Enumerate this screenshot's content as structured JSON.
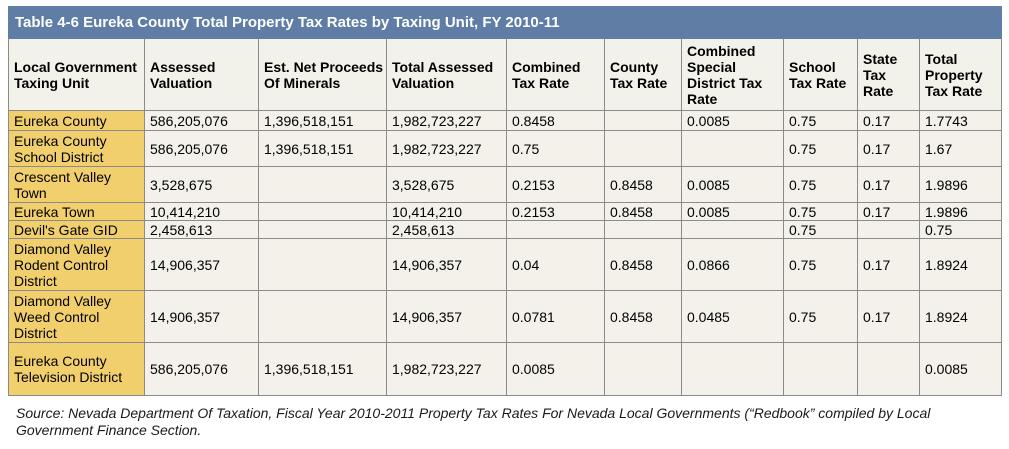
{
  "title": "Table 4-6 Eureka County Total Property Tax Rates by Taxing Unit, FY 2010-11",
  "columns": [
    "Local Government Taxing Unit",
    "Assessed Valuation",
    "Est. Net Proceeds Of Minerals",
    "Total Assessed Valuation",
    "Combined Tax Rate",
    "County Tax Rate",
    "Combined Special District Tax Rate",
    "School Tax Rate",
    "State Tax Rate",
    "Total Property Tax Rate"
  ],
  "rows": [
    [
      "Eureka County",
      "586,205,076",
      "1,396,518,151",
      "1,982,723,227",
      "0.8458",
      "",
      "0.0085",
      "0.75",
      "0.17",
      "1.7743"
    ],
    [
      "Eureka County School District",
      "586,205,076",
      "1,396,518,151",
      "1,982,723,227",
      "0.75",
      "",
      "",
      "0.75",
      "0.17",
      "1.67"
    ],
    [
      "Crescent Valley Town",
      "3,528,675",
      "",
      "3,528,675",
      "0.2153",
      "0.8458",
      "0.0085",
      "0.75",
      "0.17",
      "1.9896"
    ],
    [
      "Eureka Town",
      "10,414,210",
      "",
      "10,414,210",
      "0.2153",
      "0.8458",
      "0.0085",
      "0.75",
      "0.17",
      "1.9896"
    ],
    [
      "Devil's Gate GID",
      "2,458,613",
      "",
      "2,458,613",
      "",
      "",
      "",
      "0.75",
      "",
      "0.75"
    ],
    [
      "Diamond Valley Rodent Control District",
      "14,906,357",
      "",
      "14,906,357",
      "0.04",
      "0.8458",
      "0.0866",
      "0.75",
      "0.17",
      "1.8924"
    ],
    [
      "Diamond Valley Weed Control District",
      "14,906,357",
      "",
      "14,906,357",
      "0.0781",
      "0.8458",
      "0.0485",
      "0.75",
      "0.17",
      "1.8924"
    ],
    [
      "Eureka County Television District",
      "586,205,076",
      "1,396,518,151",
      "1,982,723,227",
      "0.0085",
      "",
      "",
      "",
      "",
      "0.0085"
    ]
  ],
  "source": "Source: Nevada Department Of Taxation, Fiscal Year 2010-2011 Property Tax Rates For Nevada Local Governments (“Redbook” compiled by Local Government Finance Section.",
  "colors": {
    "title_bg": "#5f7da5",
    "unit_cell_bg": "#f2cf6d",
    "cell_bg": "#f3f1ea",
    "border": "#8b8b8b"
  }
}
